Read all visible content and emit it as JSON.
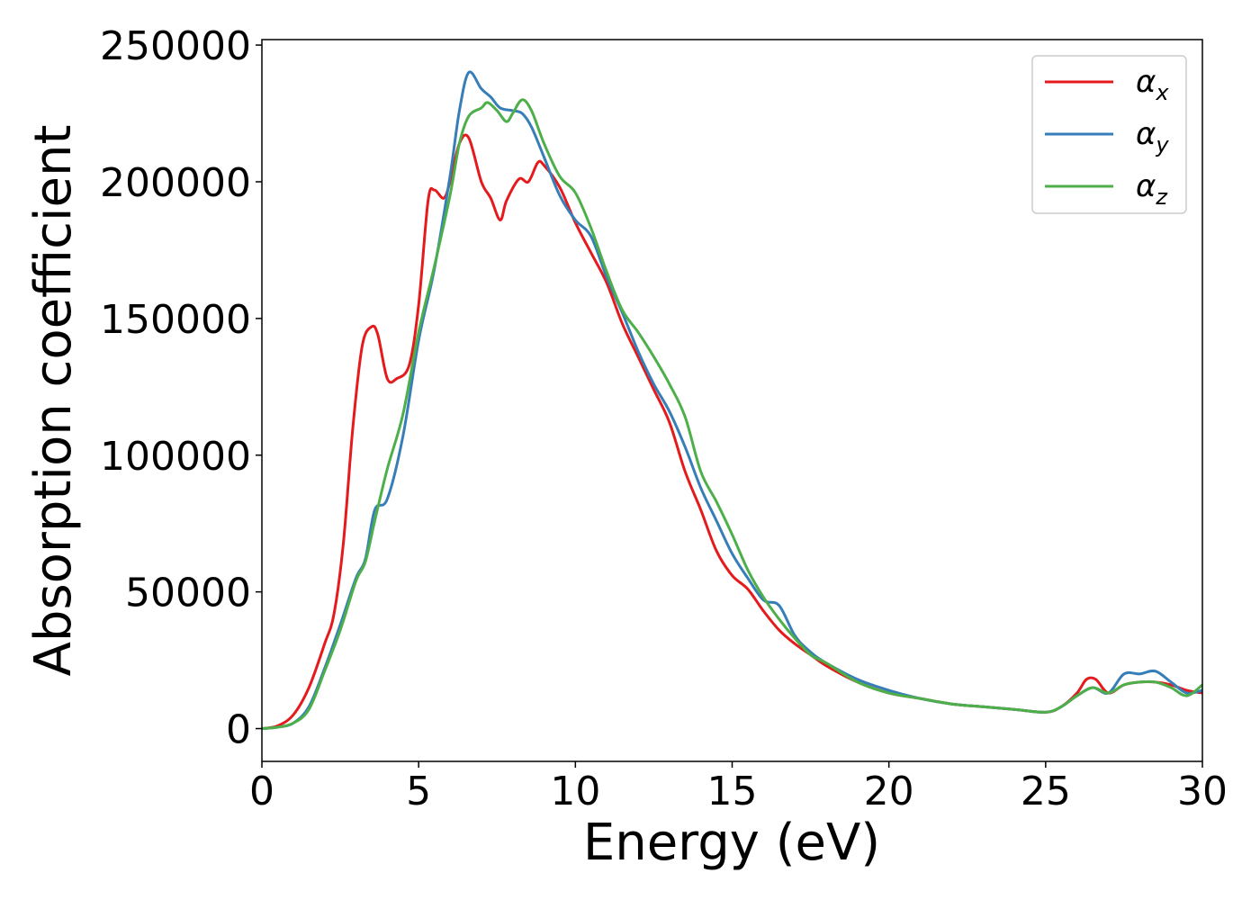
{
  "chart_data": {
    "type": "line",
    "title": "",
    "xlabel": "Energy (eV)",
    "ylabel": "Absorption coefficient",
    "xlim": [
      0,
      30
    ],
    "ylim": [
      -12000,
      252000
    ],
    "xticks": [
      0,
      5,
      10,
      15,
      20,
      25,
      30
    ],
    "yticks": [
      0,
      50000,
      100000,
      150000,
      200000,
      250000
    ],
    "xtick_labels": [
      "0",
      "5",
      "10",
      "15",
      "20",
      "25",
      "30"
    ],
    "ytick_labels": [
      "0",
      "50000",
      "100000",
      "150000",
      "200000",
      "250000"
    ],
    "grid": false,
    "legend_position": "top-right",
    "series": [
      {
        "name": "α_x",
        "legend_main": "α",
        "legend_sub": "x",
        "color": "#e41a1c",
        "x": [
          0,
          0.5,
          1,
          1.5,
          2,
          2.3,
          2.6,
          2.9,
          3.2,
          3.5,
          3.7,
          4,
          4.3,
          4.7,
          5,
          5.3,
          5.5,
          5.8,
          6,
          6.3,
          6.6,
          7,
          7.3,
          7.6,
          7.8,
          8.2,
          8.5,
          8.8,
          9,
          9.5,
          10,
          10.5,
          11,
          11.5,
          12,
          12.5,
          13,
          13.5,
          14,
          14.5,
          15,
          15.5,
          16,
          16.5,
          17,
          17.5,
          18,
          19,
          20,
          21,
          22,
          23,
          24,
          25,
          25.5,
          26,
          26.3,
          26.6,
          27,
          27.5,
          28,
          28.5,
          29,
          29.5,
          30
        ],
        "y": [
          0,
          1000,
          5000,
          15000,
          31000,
          42000,
          68000,
          110000,
          140000,
          147000,
          144000,
          128000,
          128000,
          133000,
          155000,
          193000,
          197000,
          194000,
          200000,
          214000,
          216000,
          200000,
          194000,
          186000,
          193000,
          201000,
          200000,
          207000,
          206000,
          198000,
          185000,
          174000,
          163000,
          148000,
          136000,
          124000,
          112000,
          94000,
          80000,
          65000,
          56000,
          51000,
          43000,
          36000,
          31000,
          27000,
          23000,
          17000,
          13000,
          11000,
          9000,
          8000,
          7000,
          6000,
          8000,
          13000,
          18000,
          18000,
          13000,
          16000,
          17000,
          17000,
          16000,
          14000,
          13000
        ]
      },
      {
        "name": "α_y",
        "legend_main": "α",
        "legend_sub": "y",
        "color": "#377eb8",
        "x": [
          0,
          0.5,
          1,
          1.5,
          2,
          2.5,
          3,
          3.3,
          3.6,
          4,
          4.5,
          5,
          5.5,
          6,
          6.3,
          6.6,
          7,
          7.3,
          7.6,
          8,
          8.3,
          8.6,
          9,
          9.5,
          10,
          10.5,
          11,
          11.5,
          12,
          12.5,
          13,
          13.5,
          14,
          14.5,
          15,
          15.5,
          16,
          16.5,
          17,
          17.5,
          18,
          19,
          20,
          21,
          22,
          23,
          24,
          25,
          25.5,
          26,
          26.5,
          27,
          27.5,
          28,
          28.5,
          29,
          29.5,
          30
        ],
        "y": [
          0,
          500,
          2000,
          8000,
          22000,
          38000,
          55000,
          62000,
          80000,
          84000,
          107000,
          142000,
          168000,
          202000,
          226000,
          240000,
          234000,
          231000,
          227000,
          226000,
          225000,
          220000,
          209000,
          195000,
          186000,
          180000,
          165000,
          152000,
          138000,
          126000,
          116000,
          103000,
          88000,
          76000,
          64000,
          55000,
          47000,
          45000,
          34000,
          28000,
          24000,
          18000,
          14000,
          11000,
          9000,
          8000,
          7000,
          6000,
          8000,
          12000,
          15000,
          13000,
          20000,
          20000,
          21000,
          17000,
          13000,
          14000
        ]
      },
      {
        "name": "α_z",
        "legend_main": "α",
        "legend_sub": "z",
        "color": "#4daf4a",
        "x": [
          0,
          0.5,
          1,
          1.5,
          2,
          2.5,
          3,
          3.3,
          3.6,
          4,
          4.5,
          5,
          5.5,
          6,
          6.3,
          6.6,
          7,
          7.2,
          7.5,
          7.8,
          8,
          8.3,
          8.6,
          9,
          9.5,
          10,
          10.5,
          11,
          11.5,
          12,
          12.5,
          13,
          13.5,
          14,
          14.5,
          15,
          15.5,
          16,
          16.5,
          17,
          17.5,
          18,
          19,
          20,
          21,
          22,
          23,
          24,
          25,
          25.5,
          26,
          26.5,
          27,
          27.5,
          28,
          28.5,
          29,
          29.5,
          30
        ],
        "y": [
          0,
          500,
          2000,
          7000,
          21000,
          36000,
          54000,
          61000,
          76000,
          95000,
          115000,
          145000,
          169000,
          195000,
          214000,
          224000,
          227000,
          229000,
          226000,
          222000,
          225000,
          230000,
          226000,
          214000,
          202000,
          196000,
          183000,
          167000,
          153000,
          145000,
          136000,
          126000,
          114000,
          94000,
          83000,
          71000,
          58000,
          48000,
          40000,
          33000,
          27000,
          24000,
          17000,
          13000,
          11000,
          9000,
          8000,
          7000,
          6000,
          8000,
          12000,
          15000,
          13000,
          16000,
          17000,
          17000,
          15000,
          12000,
          16000
        ]
      }
    ]
  }
}
